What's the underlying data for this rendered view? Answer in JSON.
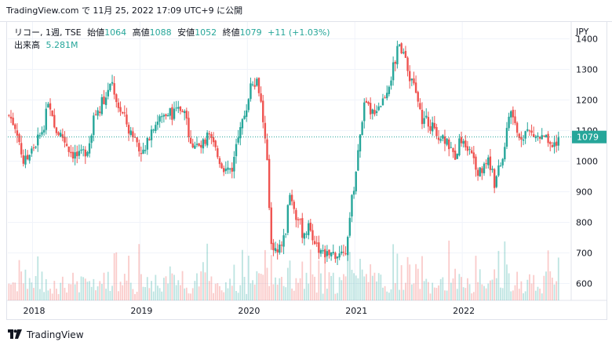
{
  "header": {
    "publish_text": "TradingView.com で 11月 25, 2022 17:09 UTC+9 に公開"
  },
  "legend": {
    "symbol": "リコー, 1週, TSE",
    "open_label": "始値",
    "open_value": "1064",
    "high_label": "高値",
    "high_value": "1088",
    "low_label": "安値",
    "low_value": "1052",
    "close_label": "終値",
    "close_value": "1079",
    "change": "+11 (+1.03%)",
    "volume_label": "出来高",
    "volume_value": "5.281M"
  },
  "footer": {
    "brand": "TradingView"
  },
  "colors": {
    "up": "#26a69a",
    "down": "#ef5350",
    "grid": "#f0f3fa",
    "text": "#131722"
  },
  "chart_data": {
    "type": "candlestick",
    "currency_label": "JPY",
    "y_ticks": [
      600,
      700,
      800,
      900,
      1000,
      1100,
      1200,
      1300,
      1400
    ],
    "ylim": [
      545,
      1455
    ],
    "x_ticks": [
      "2018",
      "2019",
      "2020",
      "2021",
      "2022"
    ],
    "x_tick_positions": [
      2018.0,
      2019.0,
      2020.0,
      2021.0,
      2022.0
    ],
    "xlim": [
      2017.77,
      2022.97
    ],
    "last_price": 1079,
    "series": [
      {
        "name": "price_close_approx",
        "points": [
          [
            2017.78,
            1150
          ],
          [
            2017.85,
            1110
          ],
          [
            2017.92,
            990
          ],
          [
            2018.0,
            1040
          ],
          [
            2018.08,
            1090
          ],
          [
            2018.15,
            1180
          ],
          [
            2018.2,
            1110
          ],
          [
            2018.28,
            1080
          ],
          [
            2018.36,
            1030
          ],
          [
            2018.44,
            1010
          ],
          [
            2018.52,
            1050
          ],
          [
            2018.58,
            1150
          ],
          [
            2018.66,
            1200
          ],
          [
            2018.74,
            1250
          ],
          [
            2018.8,
            1180
          ],
          [
            2018.88,
            1120
          ],
          [
            2018.96,
            1070
          ],
          [
            2019.04,
            1020
          ],
          [
            2019.12,
            1120
          ],
          [
            2019.2,
            1140
          ],
          [
            2019.26,
            1170
          ],
          [
            2019.32,
            1150
          ],
          [
            2019.4,
            1180
          ],
          [
            2019.48,
            1060
          ],
          [
            2019.56,
            1040
          ],
          [
            2019.64,
            1080
          ],
          [
            2019.72,
            1020
          ],
          [
            2019.8,
            970
          ],
          [
            2019.86,
            980
          ],
          [
            2019.92,
            1080
          ],
          [
            2019.98,
            1160
          ],
          [
            2020.04,
            1270
          ],
          [
            2020.1,
            1260
          ],
          [
            2020.14,
            1150
          ],
          [
            2020.18,
            1010
          ],
          [
            2020.22,
            740
          ],
          [
            2020.28,
            700
          ],
          [
            2020.34,
            740
          ],
          [
            2020.4,
            900
          ],
          [
            2020.46,
            820
          ],
          [
            2020.52,
            760
          ],
          [
            2020.58,
            780
          ],
          [
            2020.66,
            720
          ],
          [
            2020.74,
            690
          ],
          [
            2020.82,
            700
          ],
          [
            2020.9,
            680
          ],
          [
            2020.96,
            840
          ],
          [
            2021.02,
            990
          ],
          [
            2021.08,
            1180
          ],
          [
            2021.16,
            1160
          ],
          [
            2021.26,
            1200
          ],
          [
            2021.34,
            1280
          ],
          [
            2021.42,
            1390
          ],
          [
            2021.5,
            1290
          ],
          [
            2021.56,
            1230
          ],
          [
            2021.62,
            1140
          ],
          [
            2021.7,
            1120
          ],
          [
            2021.78,
            1090
          ],
          [
            2021.86,
            1070
          ],
          [
            2021.92,
            1010
          ],
          [
            2022.0,
            1080
          ],
          [
            2022.08,
            1040
          ],
          [
            2022.16,
            960
          ],
          [
            2022.24,
            1000
          ],
          [
            2022.3,
            930
          ],
          [
            2022.38,
            1010
          ],
          [
            2022.44,
            1180
          ],
          [
            2022.52,
            1080
          ],
          [
            2022.6,
            1100
          ],
          [
            2022.68,
            1080
          ],
          [
            2022.76,
            1070
          ],
          [
            2022.84,
            1050
          ],
          [
            2022.9,
            1079
          ]
        ]
      }
    ],
    "volume_bars": "generated from price series for display"
  }
}
